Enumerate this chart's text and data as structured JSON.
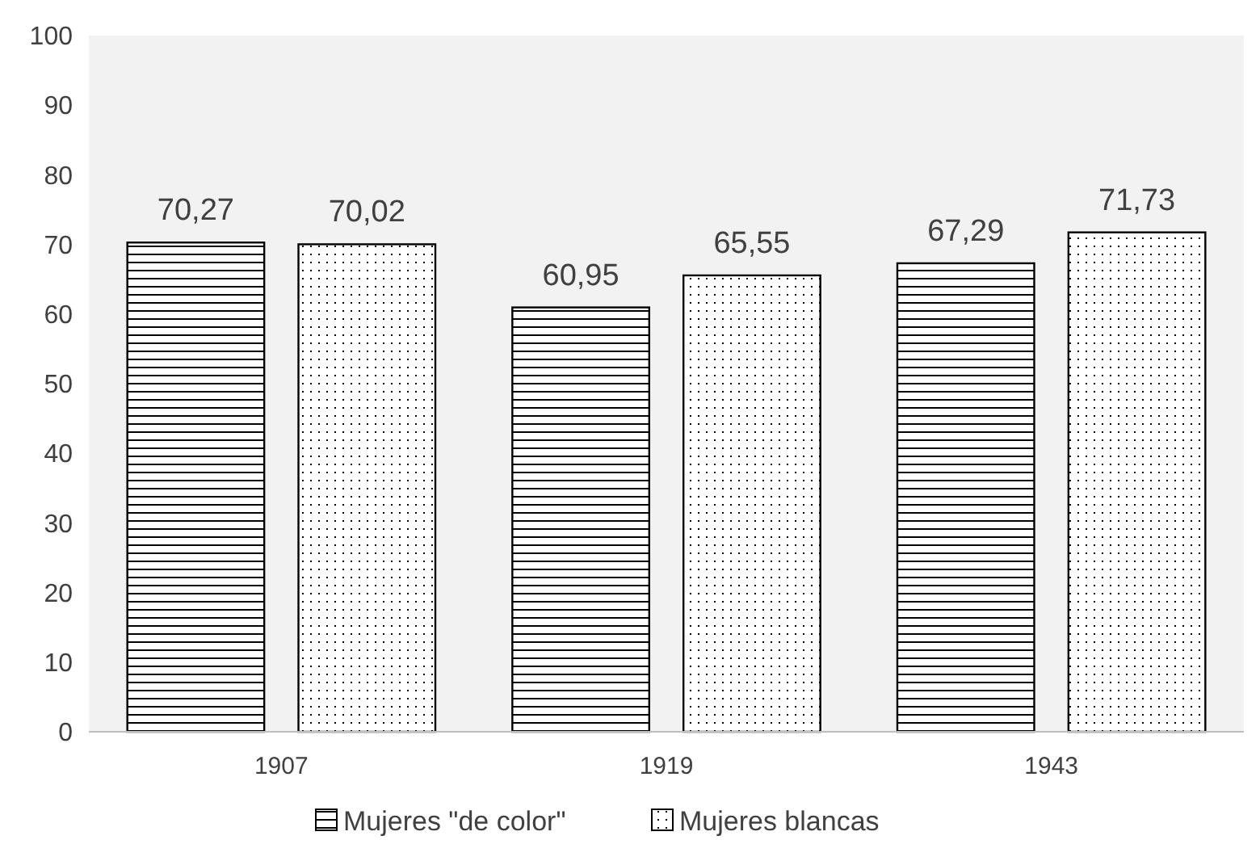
{
  "chart_data": {
    "type": "bar",
    "categories": [
      "1907",
      "1919",
      "1943"
    ],
    "series": [
      {
        "name": "Mujeres \"de color\"",
        "color": "#000000",
        "values": [
          70.27,
          60.95,
          67.29
        ],
        "value_labels": [
          "70,27",
          "60,95",
          "67,29"
        ]
      },
      {
        "name": "Mujeres blancas",
        "color": "#000000",
        "values": [
          70.02,
          65.55,
          71.73
        ],
        "value_labels": [
          "70,02",
          "65,55",
          "71,73"
        ]
      }
    ],
    "ylim": [
      0,
      100
    ],
    "yticks": [
      0,
      10,
      20,
      30,
      40,
      50,
      60,
      70,
      80,
      90,
      100
    ],
    "grid": false,
    "legend": "bottom"
  }
}
